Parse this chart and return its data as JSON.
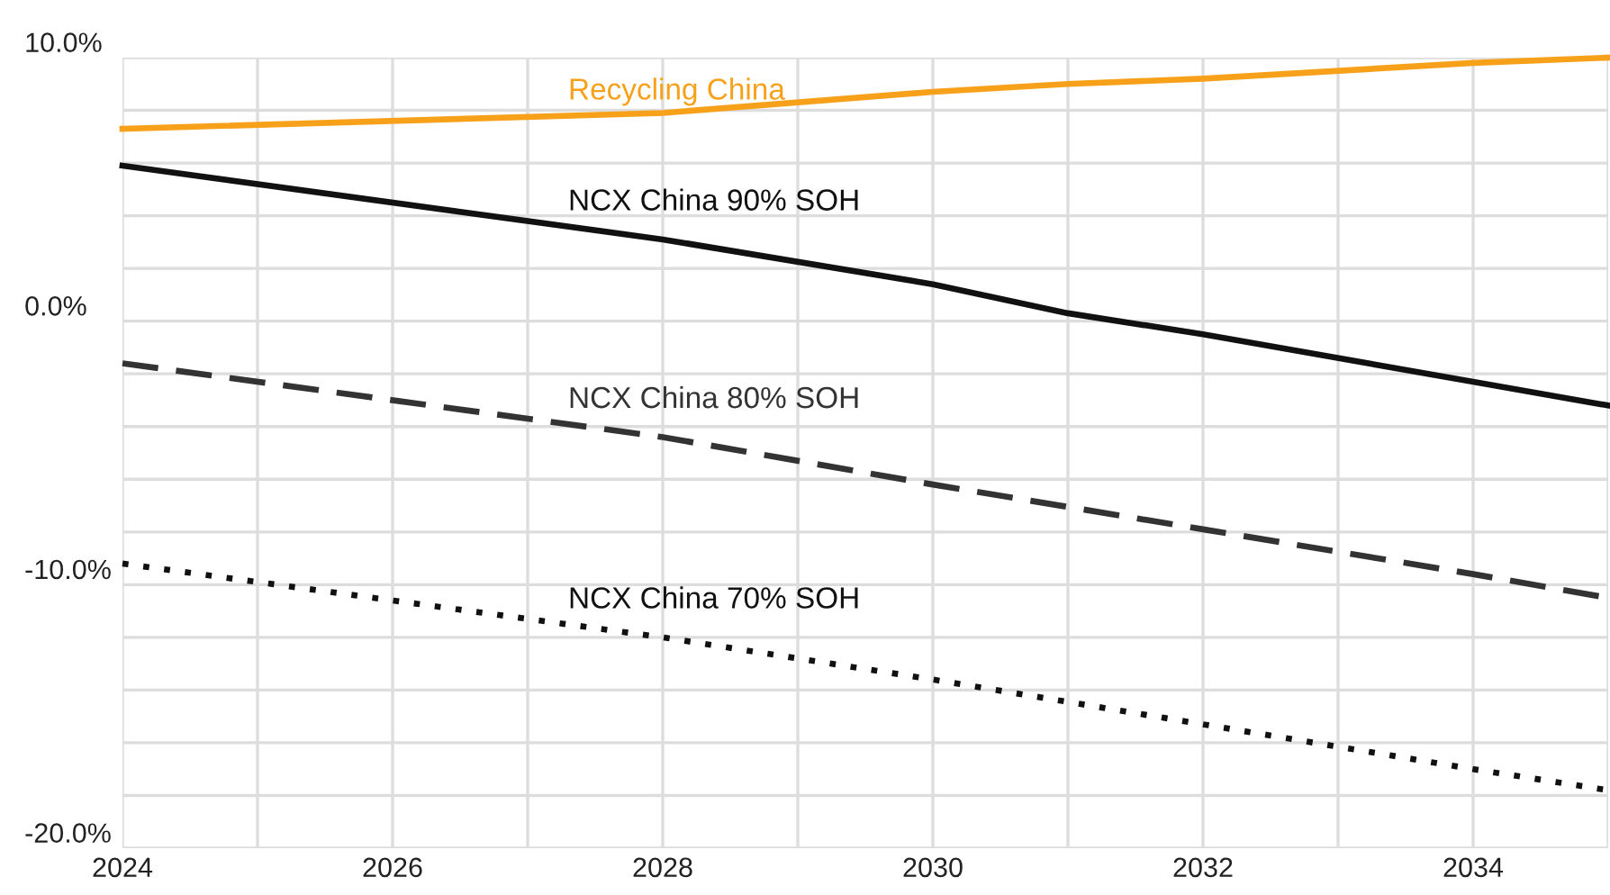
{
  "chart_data": {
    "type": "line",
    "x": [
      2024,
      2028,
      2030,
      2031,
      2032,
      2034,
      2035
    ],
    "series": [
      {
        "name": "Recycling China",
        "color": "#f7a11a",
        "line_style": "solid",
        "values": [
          7.3,
          7.9,
          8.7,
          9.0,
          9.2,
          9.8,
          10.0
        ]
      },
      {
        "name": "NCX China 90% SOH",
        "color": "#111111",
        "line_style": "solid",
        "values": [
          5.9,
          3.1,
          1.4,
          0.3,
          -0.5,
          -2.3,
          -3.2
        ]
      },
      {
        "name": "NCX China 80% SOH",
        "color": "#333333",
        "line_style": "dashed",
        "values": [
          -1.6,
          -4.4,
          -6.2,
          -7.05,
          -7.9,
          -9.6,
          -10.5
        ]
      },
      {
        "name": "NCX China 70% SOH",
        "color": "#111111",
        "line_style": "dotted",
        "values": [
          -9.2,
          -12.0,
          -13.6,
          -14.45,
          -15.3,
          -17.0,
          -17.8
        ]
      }
    ],
    "xlim": [
      2024,
      2035
    ],
    "xticks": [
      2024,
      {
        "value": 2025,
        "label": null
      },
      2026,
      {
        "value": 2027,
        "label": null
      },
      2028,
      {
        "value": 2029,
        "label": null
      },
      2030,
      {
        "value": 2031,
        "label": null
      },
      2032,
      {
        "value": 2033,
        "label": null
      },
      2034,
      {
        "value": 2035,
        "label": null
      }
    ],
    "ylim": [
      -20,
      10
    ],
    "yticks": [
      {
        "value": -20,
        "label": "-20.0%"
      },
      {
        "value": -18,
        "label": null
      },
      {
        "value": -16,
        "label": null
      },
      {
        "value": -14,
        "label": null
      },
      {
        "value": -12,
        "label": null
      },
      {
        "value": -10,
        "label": "-10.0%"
      },
      {
        "value": -8,
        "label": null
      },
      {
        "value": -6,
        "label": null
      },
      {
        "value": -4,
        "label": null
      },
      {
        "value": -2,
        "label": null
      },
      {
        "value": 0,
        "label": "0.0%"
      },
      {
        "value": 2,
        "label": null
      },
      {
        "value": 4,
        "label": null
      },
      {
        "value": 6,
        "label": null
      },
      {
        "value": 8,
        "label": null
      },
      {
        "value": 10,
        "label": "10.0%"
      }
    ],
    "grid": true,
    "legend": false,
    "marker": "none"
  }
}
